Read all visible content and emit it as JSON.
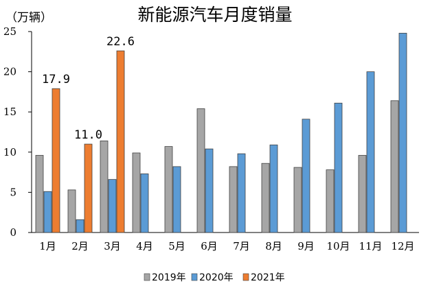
{
  "chart_data": {
    "type": "bar",
    "title": "新能源汽车月度销量",
    "unit_label": "（万辆）",
    "categories": [
      "1月",
      "2月",
      "3月",
      "4月",
      "5月",
      "6月",
      "7月",
      "8月",
      "9月",
      "10月",
      "11月",
      "12月"
    ],
    "series": [
      {
        "name": "2019年",
        "color": "#a6a6a6",
        "values": [
          9.6,
          5.3,
          11.4,
          9.9,
          10.7,
          15.4,
          8.2,
          8.6,
          8.1,
          7.8,
          9.6,
          16.4
        ]
      },
      {
        "name": "2020年",
        "color": "#5b9bd5",
        "values": [
          5.1,
          1.6,
          6.6,
          7.3,
          8.2,
          10.4,
          9.8,
          10.9,
          14.1,
          16.1,
          20.0,
          24.8
        ]
      },
      {
        "name": "2021年",
        "color": "#ed7d31",
        "values": [
          17.9,
          11.0,
          22.6,
          null,
          null,
          null,
          null,
          null,
          null,
          null,
          null,
          null
        ]
      }
    ],
    "data_labels": [
      "17.9",
      "11.0",
      "22.6"
    ],
    "yticks": [
      "0",
      "5",
      "10",
      "15",
      "20",
      "25"
    ],
    "ylim": [
      0,
      25
    ],
    "legend_position": "bottom",
    "grid": false
  }
}
